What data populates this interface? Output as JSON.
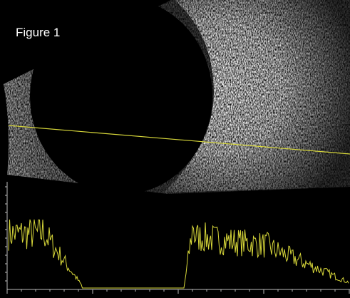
{
  "title": "Figure 1"
}
